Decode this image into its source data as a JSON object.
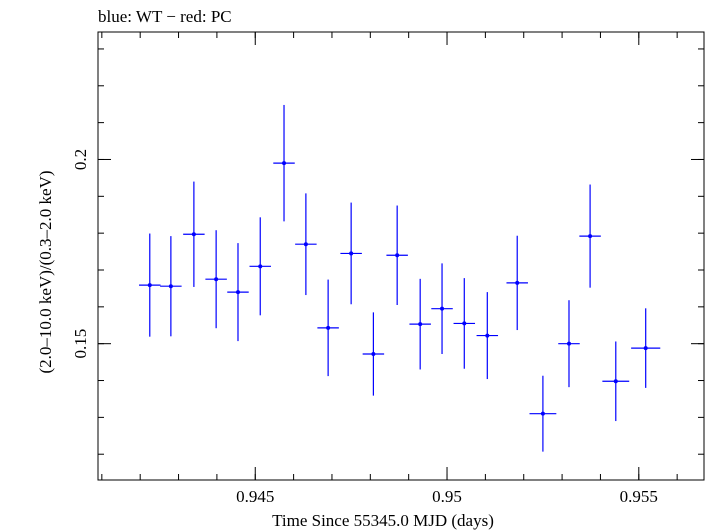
{
  "chart_data": {
    "type": "scatter",
    "title": "blue: WT − red: PC",
    "xlabel": "Time Since 55345.0 MJD (days)",
    "ylabel": "(2.0–10.0 keV)/(0.3–2.0 keV)",
    "xlim": [
      0.9409,
      0.9567
    ],
    "ylim": [
      0.113,
      0.2346
    ],
    "x_ticks": [
      0.945,
      0.95,
      0.955
    ],
    "x_tick_labels": [
      "0.945",
      "0.95",
      "0.955"
    ],
    "y_ticks": [
      0.15,
      0.2
    ],
    "y_tick_labels": [
      "0.15",
      "0.2"
    ],
    "x_minor_step": 0.001,
    "y_minor_step": 0.01,
    "series": [
      {
        "color": "#0000ff",
        "points": [
          {
            "x": 0.94225,
            "xerr": 0.00028,
            "y": 0.1659,
            "yerr": 0.014
          },
          {
            "x": 0.9428,
            "xerr": 0.00028,
            "y": 0.1656,
            "yerr": 0.0136
          },
          {
            "x": 0.9434,
            "xerr": 0.00028,
            "y": 0.1797,
            "yerr": 0.0143
          },
          {
            "x": 0.94398,
            "xerr": 0.00028,
            "y": 0.1675,
            "yerr": 0.0133
          },
          {
            "x": 0.94455,
            "xerr": 0.00028,
            "y": 0.164,
            "yerr": 0.0133
          },
          {
            "x": 0.94513,
            "xerr": 0.00028,
            "y": 0.171,
            "yerr": 0.0133
          },
          {
            "x": 0.94575,
            "xerr": 0.00028,
            "y": 0.199,
            "yerr": 0.0158
          },
          {
            "x": 0.94632,
            "xerr": 0.00028,
            "y": 0.177,
            "yerr": 0.0138
          },
          {
            "x": 0.9469,
            "xerr": 0.00028,
            "y": 0.1543,
            "yerr": 0.0131
          },
          {
            "x": 0.9475,
            "xerr": 0.00028,
            "y": 0.1745,
            "yerr": 0.0138
          },
          {
            "x": 0.94808,
            "xerr": 0.00028,
            "y": 0.1472,
            "yerr": 0.0113
          },
          {
            "x": 0.9487,
            "xerr": 0.00028,
            "y": 0.174,
            "yerr": 0.0135
          },
          {
            "x": 0.9493,
            "xerr": 0.00028,
            "y": 0.1553,
            "yerr": 0.0123
          },
          {
            "x": 0.94987,
            "xerr": 0.00028,
            "y": 0.1595,
            "yerr": 0.0123
          },
          {
            "x": 0.95045,
            "xerr": 0.00028,
            "y": 0.1555,
            "yerr": 0.0123
          },
          {
            "x": 0.95105,
            "xerr": 0.00028,
            "y": 0.1522,
            "yerr": 0.0118
          },
          {
            "x": 0.95183,
            "xerr": 0.00028,
            "y": 0.1665,
            "yerr": 0.0128
          },
          {
            "x": 0.9525,
            "xerr": 0.00035,
            "y": 0.131,
            "yerr": 0.0103
          },
          {
            "x": 0.95318,
            "xerr": 0.00028,
            "y": 0.15,
            "yerr": 0.0118
          },
          {
            "x": 0.95373,
            "xerr": 0.00028,
            "y": 0.1792,
            "yerr": 0.014
          },
          {
            "x": 0.9544,
            "xerr": 0.00035,
            "y": 0.1398,
            "yerr": 0.0108
          },
          {
            "x": 0.95518,
            "xerr": 0.00038,
            "y": 0.1488,
            "yerr": 0.0108
          }
        ]
      }
    ],
    "grid": false,
    "legend": "none"
  }
}
